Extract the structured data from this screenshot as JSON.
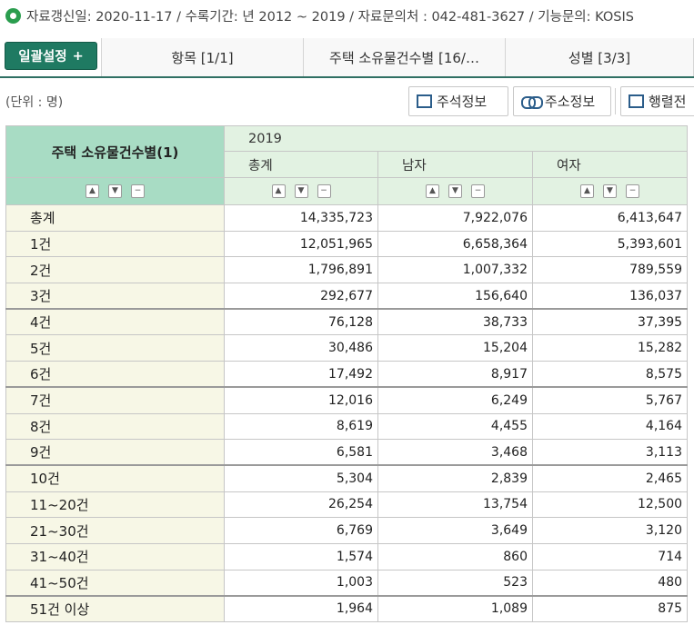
{
  "infobar": {
    "text": "자료갱신일: 2020-11-17 / 수록기간: 년 2012 ~ 2019 / 자료문의처 : 042-481-3627 / 기능문의: KOSIS"
  },
  "tabbar": {
    "bulk_button": "일괄설정",
    "bulk_plus": "+",
    "tabs": [
      {
        "label": "항목 [1/1]"
      },
      {
        "label": "주택 소유물건수별 [16/…"
      },
      {
        "label": "성별 [3/3]"
      }
    ]
  },
  "toolbar": {
    "unit_label": "(단위 : 명)",
    "annotation_button": "주석정보",
    "address_button": "주소정보",
    "pivot_button": "행렬전"
  },
  "table": {
    "row_header_title": "주택 소유물건수별(1)",
    "year": "2019",
    "columns": [
      "총계",
      "남자",
      "여자"
    ],
    "rows": [
      {
        "label": "총계",
        "values": [
          "14,335,723",
          "7,922,076",
          "6,413,647"
        ]
      },
      {
        "label": "1건",
        "values": [
          "12,051,965",
          "6,658,364",
          "5,393,601"
        ]
      },
      {
        "label": "2건",
        "values": [
          "1,796,891",
          "1,007,332",
          "789,559"
        ]
      },
      {
        "label": "3건",
        "values": [
          "292,677",
          "156,640",
          "136,037"
        ]
      },
      {
        "label": "4건",
        "values": [
          "76,128",
          "38,733",
          "37,395"
        ]
      },
      {
        "label": "5건",
        "values": [
          "30,486",
          "15,204",
          "15,282"
        ]
      },
      {
        "label": "6건",
        "values": [
          "17,492",
          "8,917",
          "8,575"
        ]
      },
      {
        "label": "7건",
        "values": [
          "12,016",
          "6,249",
          "5,767"
        ]
      },
      {
        "label": "8건",
        "values": [
          "8,619",
          "4,455",
          "4,164"
        ]
      },
      {
        "label": "9건",
        "values": [
          "6,581",
          "3,468",
          "3,113"
        ]
      },
      {
        "label": "10건",
        "values": [
          "5,304",
          "2,839",
          "2,465"
        ]
      },
      {
        "label": "11~20건",
        "values": [
          "26,254",
          "13,754",
          "12,500"
        ]
      },
      {
        "label": "21~30건",
        "values": [
          "6,769",
          "3,649",
          "3,120"
        ]
      },
      {
        "label": "31~40건",
        "values": [
          "1,574",
          "860",
          "714"
        ]
      },
      {
        "label": "41~50건",
        "values": [
          "1,003",
          "523",
          "480"
        ]
      },
      {
        "label": "51건 이상",
        "values": [
          "1,964",
          "1,089",
          "875"
        ]
      }
    ]
  },
  "colors": {
    "accent_green": "#1f7a62",
    "header_green": "#a8dcc4",
    "header_light": "#e2f2e2",
    "row_header_bg": "#f7f7e6"
  }
}
